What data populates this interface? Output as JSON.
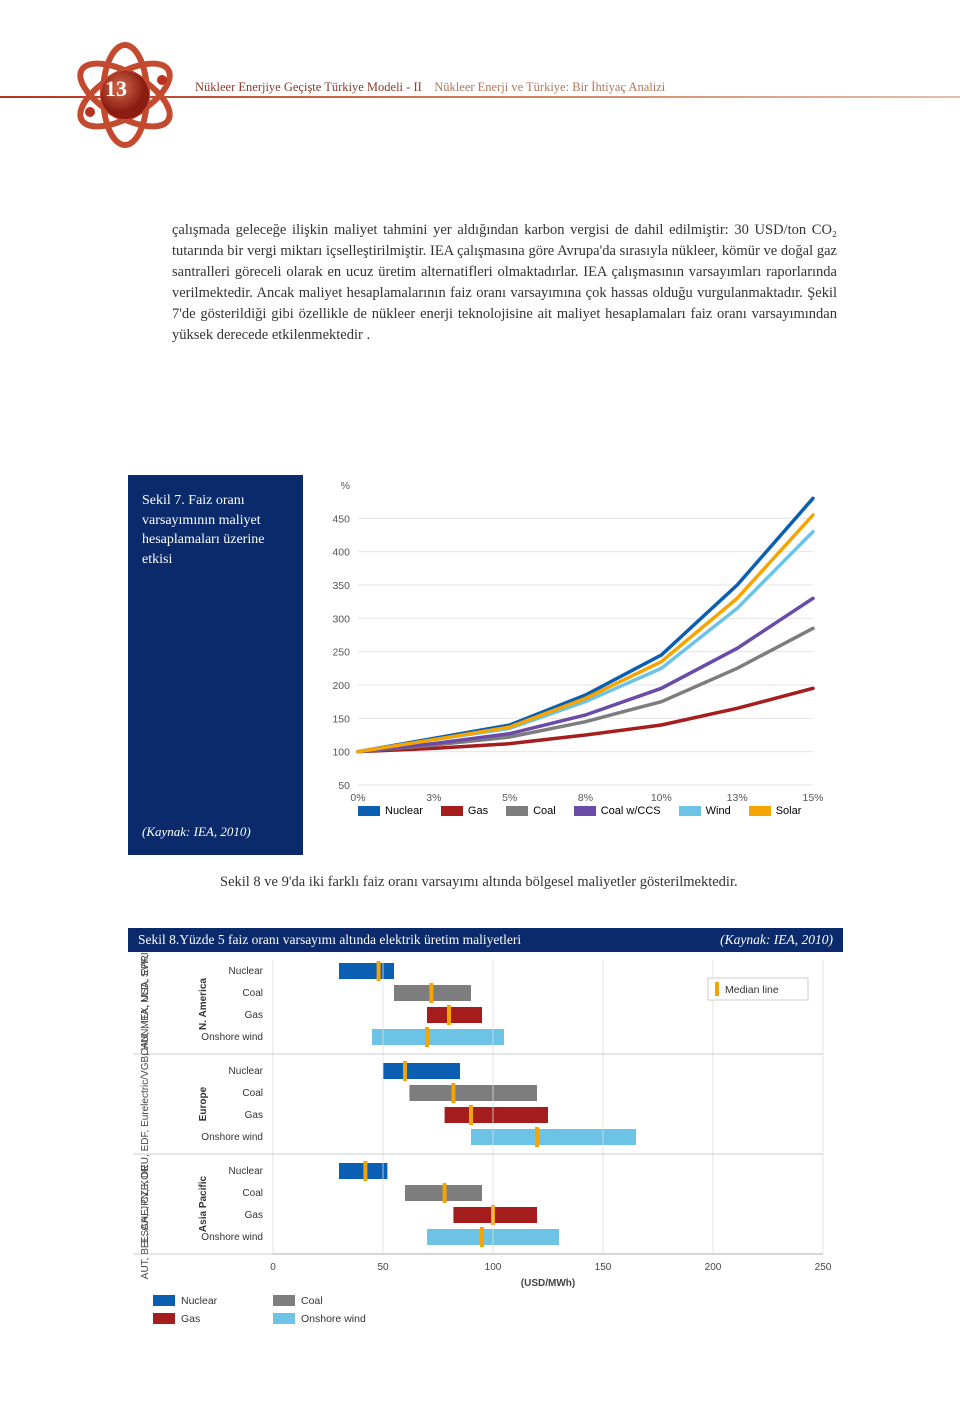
{
  "page_number": "13",
  "header": {
    "title_part1": "Nükleer Enerjiye Geçişte Türkiye Modeli - II",
    "title_part2": "Nükleer Enerji ve Türkiye: Bir İhtiyaç Analizi"
  },
  "body_paragraph": "çalışmada geleceğe ilişkin maliyet tahmini yer aldığından karbon vergisi de dahil edilmiştir: 30 USD/ton CO₂ tutarında bir vergi miktarı içselleştirilmiştir. IEA çalışmasına göre Avrupa'da sırasıyla nükleer, kömür ve doğal gaz santralleri göreceli olarak en ucuz üretim alternatifleri olmaktadırlar. IEA çalışmasının varsayımları raporlarında verilmektedir. Ancak maliyet hesaplamalarının faiz oranı varsayımına çok hassas olduğu vurgulanmaktadır. Şekil 7'de gösterildiği gibi özellikle de nükleer enerji teknolojisine ait maliyet hesaplamaları faiz oranı varsayımından yüksek derecede etkilenmektedir .",
  "fig7": {
    "caption": "Sekil 7. Faiz oranı varsayımının maliyet hesaplamaları üzerine etkisi",
    "source": "(Kaynak: IEA, 2010)",
    "y_unit": "%",
    "y_ticks": [
      50,
      100,
      150,
      200,
      250,
      300,
      350,
      400,
      450
    ],
    "x_ticks": [
      "0%",
      "3%",
      "5%",
      "8%",
      "10%",
      "13%",
      "15%"
    ],
    "ylim": [
      50,
      500
    ],
    "background_color": "#ffffff",
    "grid_color": "#e5e5e5",
    "series": [
      {
        "name": "Nuclear",
        "color": "#0b5fb3",
        "width": 3.5,
        "values": [
          100,
          120,
          140,
          185,
          245,
          350,
          480
        ]
      },
      {
        "name": "Gas",
        "color": "#a51d1d",
        "width": 3.5,
        "values": [
          100,
          105,
          112,
          125,
          140,
          165,
          195
        ]
      },
      {
        "name": "Coal",
        "color": "#7d7d7d",
        "width": 3.5,
        "values": [
          100,
          110,
          122,
          145,
          175,
          225,
          285
        ]
      },
      {
        "name": "Coal w/CCS",
        "color": "#6b4aa8",
        "width": 3.5,
        "values": [
          100,
          112,
          127,
          155,
          195,
          255,
          330
        ]
      },
      {
        "name": "Wind",
        "color": "#6cc3e6",
        "width": 3.5,
        "values": [
          100,
          118,
          135,
          175,
          225,
          315,
          430
        ]
      },
      {
        "name": "Solar",
        "color": "#f5a400",
        "width": 3.5,
        "values": [
          100,
          118,
          137,
          180,
          235,
          330,
          455
        ]
      }
    ],
    "legend": [
      {
        "label": "Nuclear",
        "color": "#0b5fb3"
      },
      {
        "label": "Gas",
        "color": "#a51d1d"
      },
      {
        "label": "Coal",
        "color": "#7d7d7d"
      },
      {
        "label": "Coal w/CCS",
        "color": "#6b4aa8"
      },
      {
        "label": "Wind",
        "color": "#6cc3e6"
      },
      {
        "label": "Solar",
        "color": "#f5a400"
      }
    ]
  },
  "closing_text": "Sekil 8 ve 9'da iki farklı faiz oranı varsayımı altında bölgesel maliyetler gösterilmektedir.",
  "fig8": {
    "bar_title": "Sekil 8.Yüzde 5 faiz oranı varsayımı altında elektrik üretim maliyetleri",
    "bar_source": "(Kaynak: IEA, 2010)",
    "x_label": "(USD/MWh)",
    "x_ticks": [
      0,
      50,
      100,
      150,
      200,
      250
    ],
    "xlim": [
      0,
      250
    ],
    "median_legend": "Median line",
    "background_color": "#ffffff",
    "grid_color": "#dddddd",
    "regions": [
      {
        "region": "N. America",
        "countries": "CAN, MEX, USA, EPRI",
        "rows": [
          {
            "cat": "Nuclear",
            "color": "#0b5fb3",
            "lo": 30,
            "hi": 55,
            "median": 48
          },
          {
            "cat": "Coal",
            "color": "#7d7d7d",
            "lo": 55,
            "hi": 90,
            "median": 72
          },
          {
            "cat": "Gas",
            "color": "#a51d1d",
            "lo": 70,
            "hi": 95,
            "median": 80
          },
          {
            "cat": "Onshore wind",
            "color": "#6cc3e6",
            "lo": 45,
            "hi": 105,
            "median": 70
          }
        ]
      },
      {
        "region": "Europe",
        "countries": "AUT, BEL, CHE, CZE, DEU, EDF, Eurelectric/VGB, HUN, ITA, NLD, SVK, SWE",
        "rows": [
          {
            "cat": "Nuclear",
            "color": "#0b5fb3",
            "lo": 50,
            "hi": 85,
            "median": 60
          },
          {
            "cat": "Coal",
            "color": "#7d7d7d",
            "lo": 62,
            "hi": 120,
            "median": 82
          },
          {
            "cat": "Gas",
            "color": "#a51d1d",
            "lo": 78,
            "hi": 125,
            "median": 90
          },
          {
            "cat": "Onshore wind",
            "color": "#6cc3e6",
            "lo": 90,
            "hi": 165,
            "median": 120
          }
        ]
      },
      {
        "region": "Asia Pacific",
        "countries": "ESAA, JPN, KOR",
        "rows": [
          {
            "cat": "Nuclear",
            "color": "#0b5fb3",
            "lo": 30,
            "hi": 52,
            "median": 42
          },
          {
            "cat": "Coal",
            "color": "#7d7d7d",
            "lo": 60,
            "hi": 95,
            "median": 78
          },
          {
            "cat": "Gas",
            "color": "#a51d1d",
            "lo": 82,
            "hi": 120,
            "median": 100
          },
          {
            "cat": "Onshore wind",
            "color": "#6cc3e6",
            "lo": 70,
            "hi": 130,
            "median": 95
          }
        ]
      }
    ],
    "legend": [
      {
        "label": "Nuclear",
        "color": "#0b5fb3"
      },
      {
        "label": "Coal",
        "color": "#7d7d7d"
      },
      {
        "label": "Gas",
        "color": "#a51d1d"
      },
      {
        "label": "Onshore wind",
        "color": "#6cc3e6"
      }
    ]
  }
}
